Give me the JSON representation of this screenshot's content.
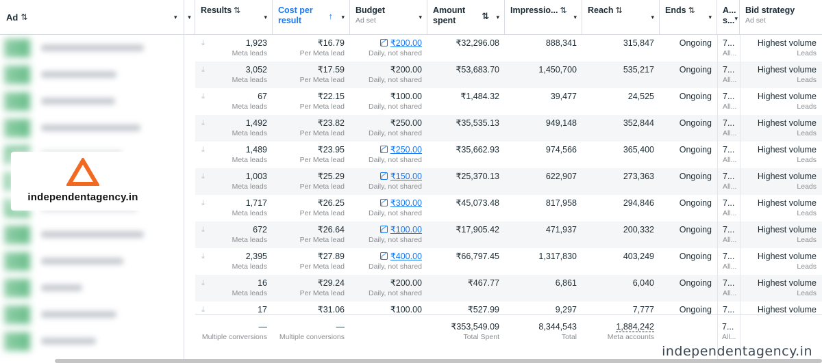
{
  "columns": {
    "ad": {
      "label": "Ad"
    },
    "results": {
      "label": "Results"
    },
    "cost": {
      "label_line1": "Cost per",
      "label_line2": "result"
    },
    "budget": {
      "label": "Budget",
      "sub": "Ad set"
    },
    "amount": {
      "label_line1": "Amount",
      "label_line2": "spent"
    },
    "impressions": {
      "label": "Impressio..."
    },
    "reach": {
      "label": "Reach"
    },
    "ends": {
      "label": "Ends"
    },
    "attr": {
      "label_line1": "A...",
      "label_line2": "s..."
    },
    "bid": {
      "label": "Bid strategy",
      "sub": "Ad set"
    }
  },
  "icons": {
    "sort": "⇅",
    "caret": "▾",
    "download": "⤓",
    "uparrow": "↑"
  },
  "rows": [
    {
      "results": "1,923",
      "results_note": "Meta leads",
      "cost": "₹16.79",
      "cost_note": "Per Meta lead",
      "budget": "₹200.00",
      "budget_link": true,
      "budget_note": "Daily, not shared",
      "amount": "₹32,296.08",
      "impressions": "888,341",
      "reach": "315,847",
      "ends": "Ongoing",
      "attr": "7...",
      "attr_note": "All...",
      "bid": "Highest volume",
      "bid_note": "Leads"
    },
    {
      "results": "3,052",
      "results_note": "Meta leads",
      "cost": "₹17.59",
      "cost_note": "Per Meta lead",
      "budget": "₹200.00",
      "budget_link": false,
      "budget_note": "Daily, not shared",
      "amount": "₹53,683.70",
      "impressions": "1,450,700",
      "reach": "535,217",
      "ends": "Ongoing",
      "attr": "7...",
      "attr_note": "All...",
      "bid": "Highest volume",
      "bid_note": "Leads"
    },
    {
      "results": "67",
      "results_note": "Meta leads",
      "cost": "₹22.15",
      "cost_note": "Per Meta lead",
      "budget": "₹100.00",
      "budget_link": false,
      "budget_note": "Daily, not shared",
      "amount": "₹1,484.32",
      "impressions": "39,477",
      "reach": "24,525",
      "ends": "Ongoing",
      "attr": "7...",
      "attr_note": "All...",
      "bid": "Highest volume",
      "bid_note": "Leads"
    },
    {
      "results": "1,492",
      "results_note": "Meta leads",
      "cost": "₹23.82",
      "cost_note": "Per Meta lead",
      "budget": "₹250.00",
      "budget_link": false,
      "budget_note": "Daily, not shared",
      "amount": "₹35,535.13",
      "impressions": "949,148",
      "reach": "352,844",
      "ends": "Ongoing",
      "attr": "7...",
      "attr_note": "All...",
      "bid": "Highest volume",
      "bid_note": "Leads"
    },
    {
      "results": "1,489",
      "results_note": "Meta leads",
      "cost": "₹23.95",
      "cost_note": "Per Meta lead",
      "budget": "₹250.00",
      "budget_link": true,
      "budget_note": "Daily, not shared",
      "amount": "₹35,662.93",
      "impressions": "974,566",
      "reach": "365,400",
      "ends": "Ongoing",
      "attr": "7...",
      "attr_note": "All...",
      "bid": "Highest volume",
      "bid_note": "Leads"
    },
    {
      "results": "1,003",
      "results_note": "Meta leads",
      "cost": "₹25.29",
      "cost_note": "Per Meta lead",
      "budget": "₹150.00",
      "budget_link": true,
      "budget_note": "Daily, not shared",
      "amount": "₹25,370.13",
      "impressions": "622,907",
      "reach": "273,363",
      "ends": "Ongoing",
      "attr": "7...",
      "attr_note": "All...",
      "bid": "Highest volume",
      "bid_note": "Leads"
    },
    {
      "results": "1,717",
      "results_note": "Meta leads",
      "cost": "₹26.25",
      "cost_note": "Per Meta lead",
      "budget": "₹300.00",
      "budget_link": true,
      "budget_note": "Daily, not shared",
      "amount": "₹45,073.48",
      "impressions": "817,958",
      "reach": "294,846",
      "ends": "Ongoing",
      "attr": "7...",
      "attr_note": "All...",
      "bid": "Highest volume",
      "bid_note": "Leads"
    },
    {
      "results": "672",
      "results_note": "Meta leads",
      "cost": "₹26.64",
      "cost_note": "Per Meta lead",
      "budget": "₹100.00",
      "budget_link": true,
      "budget_note": "Daily, not shared",
      "amount": "₹17,905.42",
      "impressions": "471,937",
      "reach": "200,332",
      "ends": "Ongoing",
      "attr": "7...",
      "attr_note": "All...",
      "bid": "Highest volume",
      "bid_note": "Leads"
    },
    {
      "results": "2,395",
      "results_note": "Meta leads",
      "cost": "₹27.89",
      "cost_note": "Per Meta lead",
      "budget": "₹400.00",
      "budget_link": true,
      "budget_note": "Daily, not shared",
      "amount": "₹66,797.45",
      "impressions": "1,317,830",
      "reach": "403,249",
      "ends": "Ongoing",
      "attr": "7...",
      "attr_note": "All...",
      "bid": "Highest volume",
      "bid_note": "Leads"
    },
    {
      "results": "16",
      "results_note": "Meta leads",
      "cost": "₹29.24",
      "cost_note": "Per Meta lead",
      "budget": "₹200.00",
      "budget_link": false,
      "budget_note": "Daily, not shared",
      "amount": "₹467.77",
      "impressions": "6,861",
      "reach": "6,040",
      "ends": "Ongoing",
      "attr": "7...",
      "attr_note": "All...",
      "bid": "Highest volume",
      "bid_note": "Leads"
    },
    {
      "results": "17",
      "results_note": "",
      "cost": "₹31.06",
      "cost_note": "",
      "budget": "₹100.00",
      "budget_link": false,
      "budget_note": "",
      "amount": "₹527.99",
      "impressions": "9,297",
      "reach": "7,777",
      "ends": "Ongoing",
      "attr": "7...",
      "attr_note": "",
      "bid": "Highest volume",
      "bid_note": ""
    }
  ],
  "totals": {
    "results": "—",
    "results_note": "Multiple conversions",
    "cost": "—",
    "cost_note": "Multiple conversions",
    "amount": "₹353,549.09",
    "amount_note": "Total Spent",
    "impressions": "8,344,543",
    "impressions_note": "Total",
    "reach": "1,884,242",
    "reach_note": "Meta accounts",
    "attr": "7...",
    "attr_note": "All..."
  },
  "logo": {
    "name": "independentagency.in",
    "color": "#f26a21"
  },
  "watermark": "independentagency.in"
}
